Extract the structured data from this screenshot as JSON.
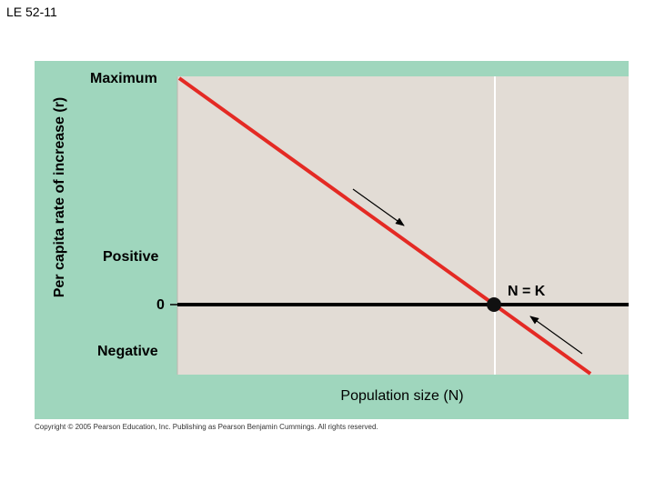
{
  "slide": {
    "title": "LE 52-11"
  },
  "figure": {
    "y_axis_title": "Per capita rate of increase (r)",
    "y_ticks": {
      "maximum": "Maximum",
      "positive": "Positive",
      "zero": "0",
      "negative": "Negative"
    },
    "x_axis_title": "Population size (N)",
    "equilibrium_label": "N = K",
    "colors": {
      "panel_background": "#9fd6bd",
      "plot_area": "#e2dcd5",
      "line": "#e42a24",
      "zero_line": "#000000",
      "carrying_capacity_line": "#ffffff",
      "equilibrium_point": "#111111",
      "arrows": "#000000"
    }
  },
  "copyright": "Copyright © 2005 Pearson Education, Inc. Publishing as Pearson Benjamin Cummings. All rights reserved."
}
